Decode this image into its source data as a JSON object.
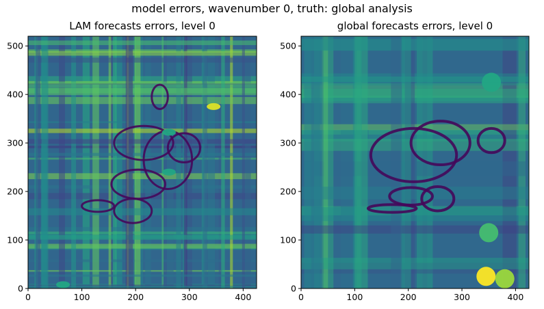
{
  "suptitle": "model errors, wavenumber 0, truth: global analysis",
  "chart_data": [
    {
      "type": "heatmap",
      "title": "LAM forecasts errors, level 0",
      "colormap": "viridis",
      "xlim": [
        0,
        425
      ],
      "ylim": [
        0,
        520
      ],
      "xticks": [
        0,
        100,
        200,
        300,
        400
      ],
      "yticks": [
        0,
        100,
        200,
        300,
        400,
        500
      ],
      "bright_spots": [
        {
          "x": 345,
          "y": 375,
          "level": 0.95
        },
        {
          "x": 262,
          "y": 322,
          "level": 0.6
        },
        {
          "x": 262,
          "y": 240,
          "level": 0.6
        },
        {
          "x": 65,
          "y": 8,
          "level": 0.6
        }
      ]
    },
    {
      "type": "heatmap",
      "title": "global forecasts errors, level 0",
      "colormap": "viridis",
      "xlim": [
        0,
        425
      ],
      "ylim": [
        0,
        520
      ],
      "xticks": [
        0,
        100,
        200,
        300,
        400
      ],
      "yticks": [
        0,
        100,
        200,
        300,
        400,
        500
      ],
      "bright_spots": [
        {
          "x": 345,
          "y": 25,
          "level": 1.0
        },
        {
          "x": 380,
          "y": 20,
          "level": 0.85
        },
        {
          "x": 350,
          "y": 115,
          "level": 0.7
        },
        {
          "x": 355,
          "y": 425,
          "level": 0.6
        }
      ]
    }
  ]
}
